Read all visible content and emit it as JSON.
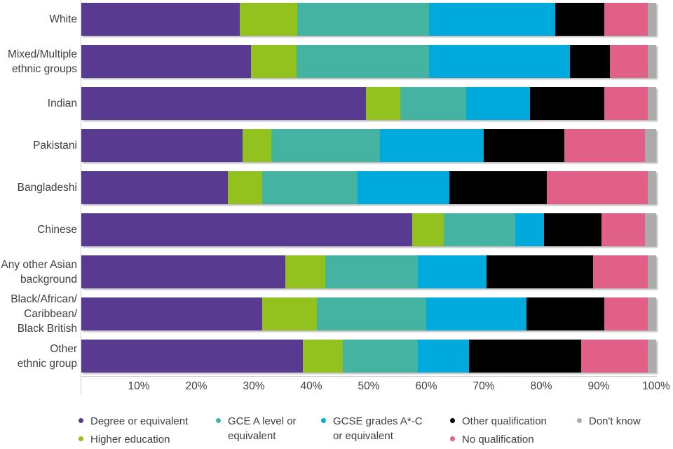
{
  "chart_data": {
    "type": "bar",
    "stacked": true,
    "orientation": "horizontal",
    "title": "",
    "xlabel": "",
    "ylabel": "",
    "xlim": [
      0,
      100
    ],
    "x_tick_labels": [
      "10%",
      "20%",
      "30%",
      "40%",
      "50%",
      "60%",
      "70%",
      "80%",
      "90%",
      "100%"
    ],
    "grid": false,
    "legend_position": "bottom",
    "categories": [
      "White",
      "Mixed/Multiple ethnic groups",
      "Indian",
      "Pakistani",
      "Bangladeshi",
      "Chinese",
      "Any other Asian background",
      "Black/African/Caribbean/Black British",
      "Other ethnic group"
    ],
    "category_label_lines": [
      [
        "White"
      ],
      [
        "Mixed/Multiple",
        "ethnic groups"
      ],
      [
        "Indian"
      ],
      [
        "Pakistani"
      ],
      [
        "Bangladeshi"
      ],
      [
        "Chinese"
      ],
      [
        "Any other Asian",
        "background"
      ],
      [
        "Black/African/",
        "Caribbean/",
        "Black British"
      ],
      [
        "Other",
        "ethnic group"
      ]
    ],
    "series": [
      {
        "name": "Degree or equivalent",
        "color": "#583a90",
        "values": [
          27.5,
          29.5,
          49.5,
          28.0,
          25.5,
          57.5,
          35.5,
          31.5,
          38.5
        ]
      },
      {
        "name": "Higher education",
        "color": "#93c11e",
        "values": [
          10.0,
          8.0,
          6.0,
          5.0,
          6.0,
          5.5,
          7.0,
          9.5,
          7.0
        ]
      },
      {
        "name": "GCE A level or equivalent",
        "color": "#44b3a2",
        "values": [
          23.0,
          23.0,
          11.5,
          19.0,
          16.5,
          12.5,
          16.0,
          19.0,
          13.0
        ]
      },
      {
        "name": "GCSE grades A*-C or equivalent",
        "color": "#00aadd",
        "values": [
          22.0,
          24.5,
          11.0,
          18.0,
          16.0,
          5.0,
          12.0,
          17.5,
          9.0
        ]
      },
      {
        "name": "Other qualification",
        "color": "#000000",
        "values": [
          8.5,
          7.0,
          13.0,
          14.0,
          17.0,
          10.0,
          18.5,
          13.5,
          19.5
        ]
      },
      {
        "name": "No qualification",
        "color": "#e16087",
        "values": [
          7.5,
          6.5,
          7.5,
          14.0,
          17.5,
          7.5,
          9.5,
          7.5,
          11.5
        ]
      },
      {
        "name": "Don't know",
        "color": "#ababab",
        "values": [
          1.5,
          1.5,
          1.5,
          2.0,
          1.5,
          2.0,
          1.5,
          1.5,
          1.5
        ]
      }
    ],
    "legend_labels_wrapped": [
      [
        "Degree or equivalent"
      ],
      [
        "Higher education"
      ],
      [
        "GCE A level or",
        "equivalent"
      ],
      [
        "GCSE grades A*-C",
        "or equivalent"
      ],
      [
        "Other qualification"
      ],
      [
        "No qualification"
      ],
      [
        "Don't know"
      ]
    ]
  },
  "colors": {
    "axis": "#cccccc",
    "text": "#404040",
    "background": "#ffffff"
  }
}
